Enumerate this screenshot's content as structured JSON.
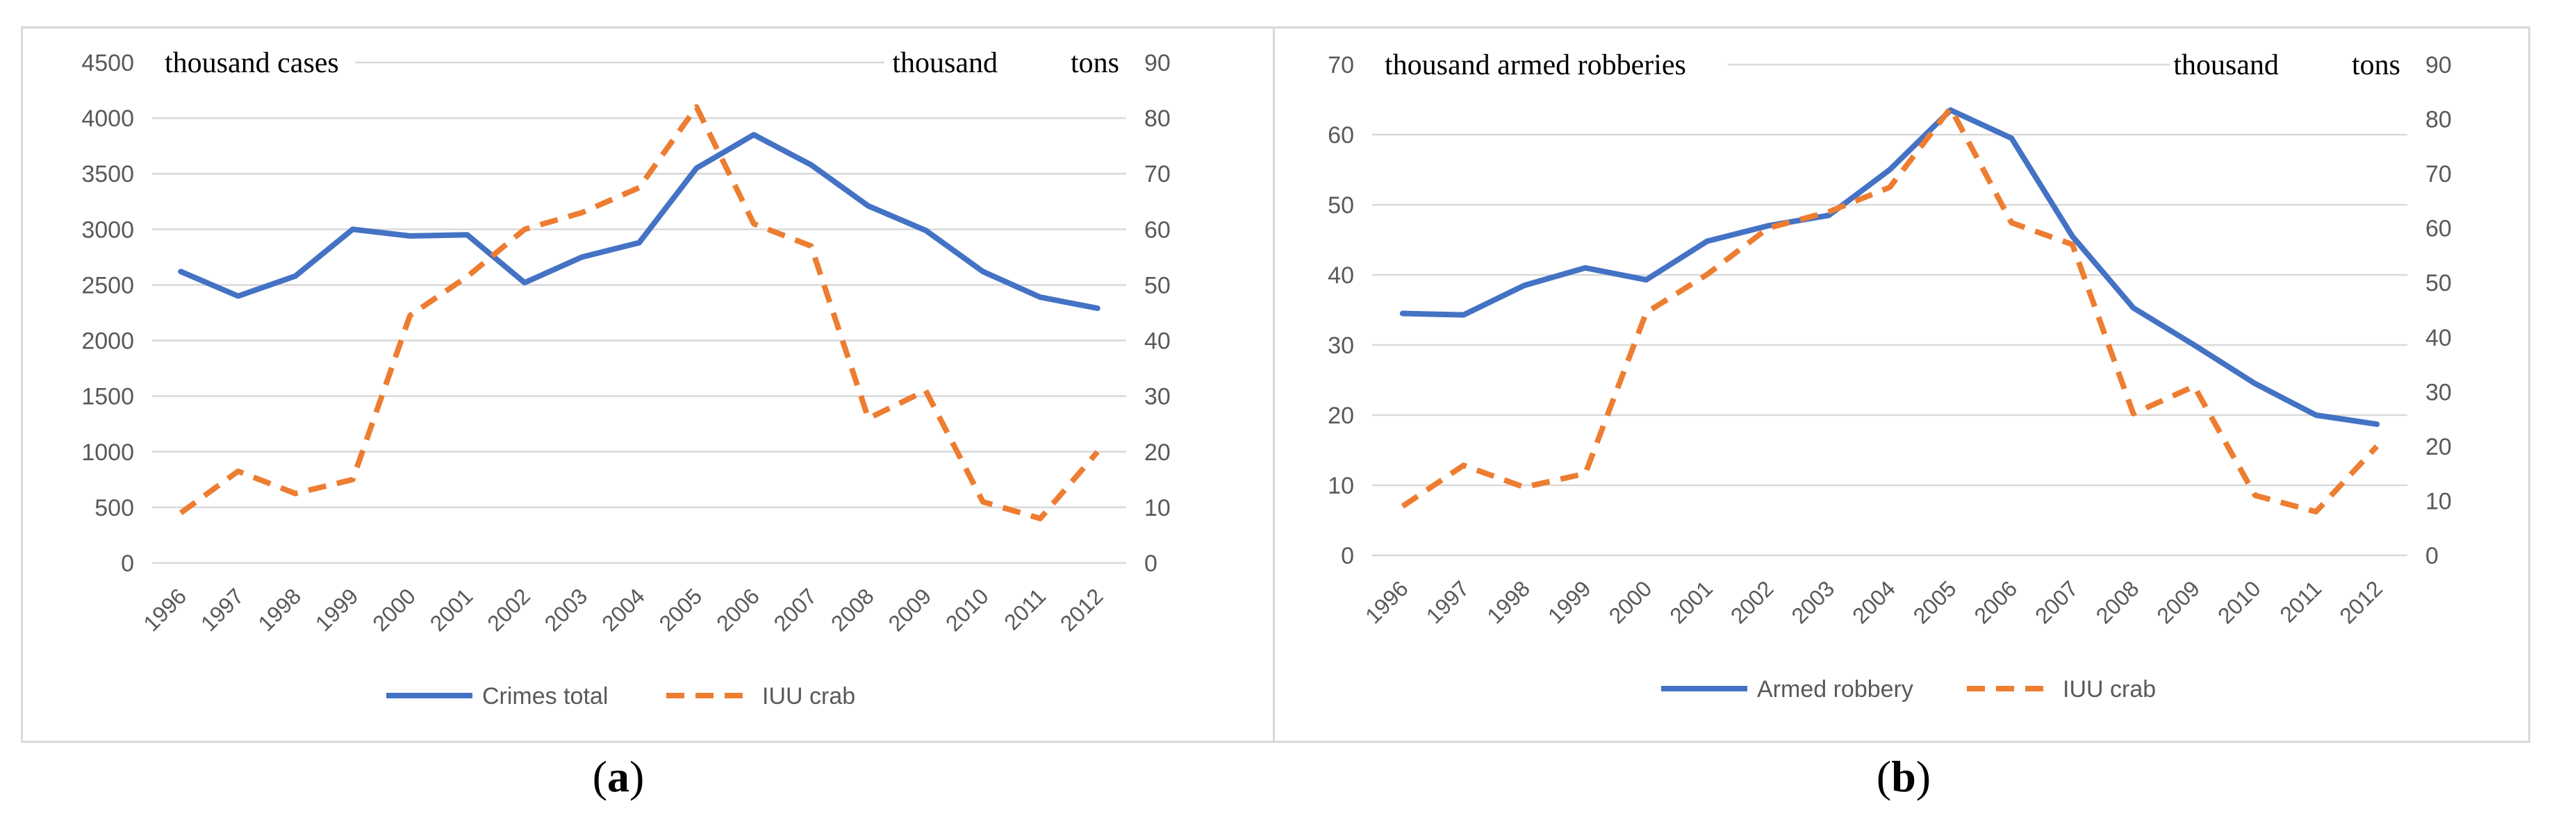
{
  "charts": [
    {
      "panel_label": "a",
      "chart_data": {
        "type": "line",
        "categories": [
          "1996",
          "1997",
          "1998",
          "1999",
          "2000",
          "2001",
          "2002",
          "2003",
          "2004",
          "2005",
          "2006",
          "2007",
          "2008",
          "2009",
          "2010",
          "2011",
          "2012"
        ],
        "left_axis_unit": "thousand cases",
        "right_axis_unit_parts": [
          "thousand",
          "tons"
        ],
        "left_ylim": [
          0,
          4500
        ],
        "left_ticks": [
          0,
          500,
          1000,
          1500,
          2000,
          2500,
          3000,
          3500,
          4000,
          4500
        ],
        "right_ylim": [
          0,
          90
        ],
        "right_ticks": [
          0,
          10,
          20,
          30,
          40,
          50,
          60,
          70,
          80,
          90
        ],
        "grid": true,
        "legend_position": "bottom",
        "series": [
          {
            "name": "Crimes total",
            "axis": "left",
            "style": "solid",
            "color": "#4472c4",
            "values": [
              2620,
              2400,
              2580,
              3000,
              2940,
              2950,
              2520,
              2750,
              2880,
              3550,
              3850,
              3580,
              3210,
              2990,
              2620,
              2390,
              2290
            ]
          },
          {
            "name": "IUU crab",
            "axis": "right",
            "style": "dashed",
            "color": "#ed7d31",
            "values": [
              9,
              16.5,
              12.5,
              15,
              44.5,
              51.5,
              60,
              63,
              67.5,
              82,
              61,
              57,
              26,
              31,
              11,
              8,
              20
            ]
          }
        ]
      }
    },
    {
      "panel_label": "b",
      "chart_data": {
        "type": "line",
        "categories": [
          "1996",
          "1997",
          "1998",
          "1999",
          "2000",
          "2001",
          "2002",
          "2003",
          "2004",
          "2005",
          "2006",
          "2007",
          "2008",
          "2009",
          "2010",
          "2011",
          "2012"
        ],
        "left_axis_unit": "thousand armed robberies",
        "right_axis_unit_parts": [
          "thousand",
          "tons"
        ],
        "left_ylim": [
          0,
          70
        ],
        "left_ticks": [
          0,
          10,
          20,
          30,
          40,
          50,
          60,
          70
        ],
        "right_ylim": [
          0,
          90
        ],
        "right_ticks": [
          0,
          10,
          20,
          30,
          40,
          50,
          60,
          70,
          80,
          90
        ],
        "grid": true,
        "legend_position": "bottom",
        "series": [
          {
            "name": "Armed robbery",
            "axis": "left",
            "style": "solid",
            "color": "#4472c4",
            "values": [
              34.5,
              34.3,
              38.5,
              41,
              39.3,
              44.8,
              47,
              48.5,
              55,
              63.5,
              59.5,
              45.5,
              35.3,
              30,
              24.5,
              20,
              18.7
            ]
          },
          {
            "name": "IUU crab",
            "axis": "right",
            "style": "dashed",
            "color": "#ed7d31",
            "values": [
              9,
              16.5,
              12.5,
              15,
              44.5,
              51.5,
              60,
              63,
              67.5,
              82,
              61,
              57,
              26,
              31,
              11,
              8,
              20
            ]
          }
        ]
      }
    }
  ]
}
